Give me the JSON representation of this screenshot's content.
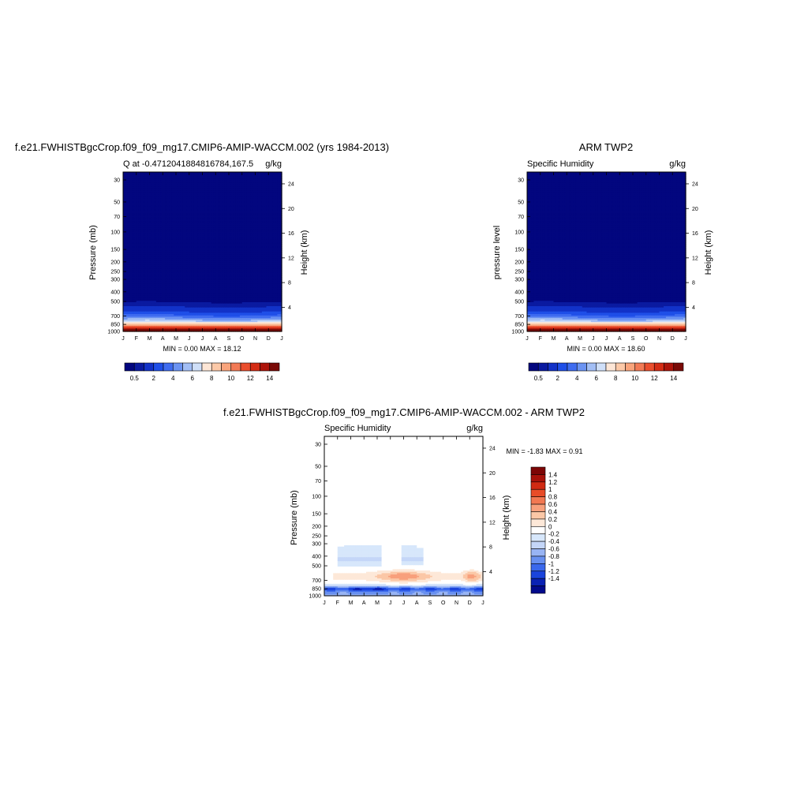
{
  "palette_seq": [
    "#02067f",
    "#0a1aa0",
    "#1232c8",
    "#1f4fe8",
    "#3f6cf0",
    "#6b93f2",
    "#a2bef5",
    "#cfdff8",
    "#fde6d6",
    "#fcc9a8",
    "#f9a47c",
    "#f27a55",
    "#ea4e2d",
    "#d42c14",
    "#ad140a",
    "#7a0a06"
  ],
  "palette_diff": [
    "#020a8c",
    "#0a22b4",
    "#1a44dc",
    "#3a68ec",
    "#6890f0",
    "#98b4f4",
    "#c4d6f8",
    "#d7e7fb",
    "#ffffff",
    "#fde8d8",
    "#fbc7a6",
    "#f8a07c",
    "#f27852",
    "#e84c28",
    "#d02a12",
    "#a8120a",
    "#7d0606"
  ],
  "months": [
    "J",
    "F",
    "M",
    "A",
    "M",
    "J",
    "J",
    "A",
    "S",
    "O",
    "N",
    "D",
    "J"
  ],
  "pressure_ticks": [
    "30",
    "50",
    "70",
    "100",
    "150",
    "200",
    "250",
    "300",
    "400",
    "500",
    "700",
    "850",
    "1000"
  ],
  "height_ticks": [
    "24",
    "20",
    "16",
    "12",
    "8",
    "4"
  ],
  "panels": [
    {
      "id": "model",
      "header": "f.e21.FWHISTBgcCrop.f09_f09_mg17.CMIP6-AMIP-WACCM.002 (yrs 1984-2013)",
      "left_string": "Q at -0.4712041884816784,167.5",
      "right_string": "g/kg",
      "ylabel": "Pressure (mb)",
      "ylabel_right": "Height (km)",
      "stats": "MIN =   0.00 MAX =  18.12",
      "colorbar_labels": [
        "0.5",
        "2",
        "4",
        "6",
        "8",
        "10",
        "12",
        "14"
      ]
    },
    {
      "id": "obs",
      "header": "ARM TWP2",
      "left_string": "Specific Humidity",
      "right_string": "g/kg",
      "ylabel": "pressure level",
      "ylabel_right": "Height (km)",
      "stats": "MIN =   0.00 MAX =  18.60",
      "colorbar_labels": [
        "0.5",
        "2",
        "4",
        "6",
        "8",
        "10",
        "12",
        "14"
      ]
    },
    {
      "id": "diff",
      "header": "f.e21.FWHISTBgcCrop.f09_f09_mg17.CMIP6-AMIP-WACCM.002 - ARM TWP2",
      "left_string": "Specific Humidity",
      "right_string": "g/kg",
      "ylabel": "Pressure (mb)",
      "ylabel_right": "Height (km)",
      "stats": "MIN =  -1.83 MAX =   0.91",
      "colorbar_labels": [
        "1.4",
        "1.2",
        "1",
        "0.8",
        "0.6",
        "0.4",
        "0.2",
        "0",
        "-0.2",
        "-0.4",
        "-0.6",
        "-0.8",
        "-1",
        "-1.2",
        "-1.4"
      ]
    }
  ],
  "chart_data": [
    {
      "type": "heatmap",
      "title": "f.e21.FWHISTBgcCrop.f09_f09_mg17.CMIP6-AMIP-WACCM.002 (yrs 1984-2013)",
      "subtitle": "Q at -0.4712041884816784,167.5",
      "units": "g/kg",
      "x": [
        "J",
        "F",
        "M",
        "A",
        "M",
        "J",
        "J",
        "A",
        "S",
        "O",
        "N",
        "D",
        "J"
      ],
      "xlabel": "",
      "ylabel": "Pressure (mb)",
      "y2label": "Height (km)",
      "y": [
        30,
        50,
        70,
        100,
        150,
        200,
        250,
        300,
        400,
        500,
        700,
        850,
        1000
      ],
      "ylim": [
        1000,
        25
      ],
      "values": [
        0.0,
        0.0,
        0.0,
        0.0,
        0.0,
        0.0,
        0.0,
        0.05,
        0.5,
        2.5,
        7.5,
        13.5,
        18.0
      ],
      "min": 0.0,
      "max": 18.12,
      "contour_levels": [
        0.5,
        1,
        2,
        3,
        4,
        5,
        6,
        7,
        8,
        9,
        10,
        11,
        12,
        13,
        14
      ],
      "legend": "bottom"
    },
    {
      "type": "heatmap",
      "title": "ARM TWP2",
      "subtitle": "Specific Humidity",
      "units": "g/kg",
      "x": [
        "J",
        "F",
        "M",
        "A",
        "M",
        "J",
        "J",
        "A",
        "S",
        "O",
        "N",
        "D",
        "J"
      ],
      "xlabel": "",
      "ylabel": "pressure level",
      "y2label": "Height (km)",
      "y": [
        30,
        50,
        70,
        100,
        150,
        200,
        250,
        300,
        400,
        500,
        700,
        850,
        1000
      ],
      "ylim": [
        1000,
        25
      ],
      "values": [
        0.0,
        0.0,
        0.0,
        0.0,
        0.0,
        0.0,
        0.0,
        0.08,
        0.6,
        2.7,
        7.8,
        13.8,
        18.4
      ],
      "min": 0.0,
      "max": 18.6,
      "contour_levels": [
        0.5,
        1,
        2,
        3,
        4,
        5,
        6,
        7,
        8,
        9,
        10,
        11,
        12,
        13,
        14
      ],
      "legend": "bottom"
    },
    {
      "type": "heatmap",
      "title": "f.e21.FWHISTBgcCrop.f09_f09_mg17.CMIP6-AMIP-WACCM.002 - ARM TWP2",
      "subtitle": "Specific Humidity",
      "units": "g/kg",
      "x": [
        "J",
        "F",
        "M",
        "A",
        "M",
        "J",
        "J",
        "A",
        "S",
        "O",
        "N",
        "D",
        "J"
      ],
      "xlabel": "",
      "ylabel": "Pressure (mb)",
      "y2label": "Height (km)",
      "y": [
        30,
        50,
        70,
        100,
        150,
        200,
        250,
        300,
        400,
        500,
        700,
        850,
        1000
      ],
      "ylim": [
        1000,
        25
      ],
      "values": [
        0.0,
        0.0,
        0.0,
        0.0,
        0.1,
        0.1,
        0.0,
        0.0,
        -0.2,
        0.1,
        0.5,
        -1.2,
        -0.4
      ],
      "min": -1.83,
      "max": 0.91,
      "contour_levels": [
        -1.4,
        -1.2,
        -1,
        -0.8,
        -0.6,
        -0.4,
        -0.2,
        0,
        0.2,
        0.4,
        0.6,
        0.8,
        1,
        1.2,
        1.4
      ],
      "legend": "right"
    }
  ]
}
